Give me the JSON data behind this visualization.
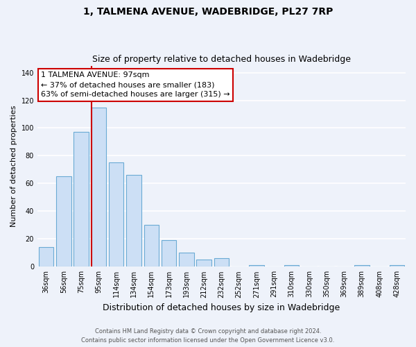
{
  "title": "1, TALMENA AVENUE, WADEBRIDGE, PL27 7RP",
  "subtitle": "Size of property relative to detached houses in Wadebridge",
  "xlabel": "Distribution of detached houses by size in Wadebridge",
  "ylabel": "Number of detached properties",
  "bar_labels": [
    "36sqm",
    "56sqm",
    "75sqm",
    "95sqm",
    "114sqm",
    "134sqm",
    "154sqm",
    "173sqm",
    "193sqm",
    "212sqm",
    "232sqm",
    "252sqm",
    "271sqm",
    "291sqm",
    "310sqm",
    "330sqm",
    "350sqm",
    "369sqm",
    "389sqm",
    "408sqm",
    "428sqm"
  ],
  "bar_values": [
    14,
    65,
    97,
    115,
    75,
    66,
    30,
    19,
    10,
    5,
    6,
    0,
    1,
    0,
    1,
    0,
    0,
    0,
    1,
    0,
    1
  ],
  "bar_color": "#ccdff5",
  "bar_edge_color": "#6aaad4",
  "bg_color": "#eef2fa",
  "grid_color": "#ffffff",
  "ylim": [
    0,
    145
  ],
  "yticks": [
    0,
    20,
    40,
    60,
    80,
    100,
    120,
    140
  ],
  "property_line_color": "#cc0000",
  "property_line_bin_index": 3,
  "annotation_title": "1 TALMENA AVENUE: 97sqm",
  "annotation_line1": "← 37% of detached houses are smaller (183)",
  "annotation_line2": "63% of semi-detached houses are larger (315) →",
  "annotation_box_color": "#ffffff",
  "annotation_border_color": "#cc0000",
  "footer1": "Contains HM Land Registry data © Crown copyright and database right 2024.",
  "footer2": "Contains public sector information licensed under the Open Government Licence v3.0."
}
